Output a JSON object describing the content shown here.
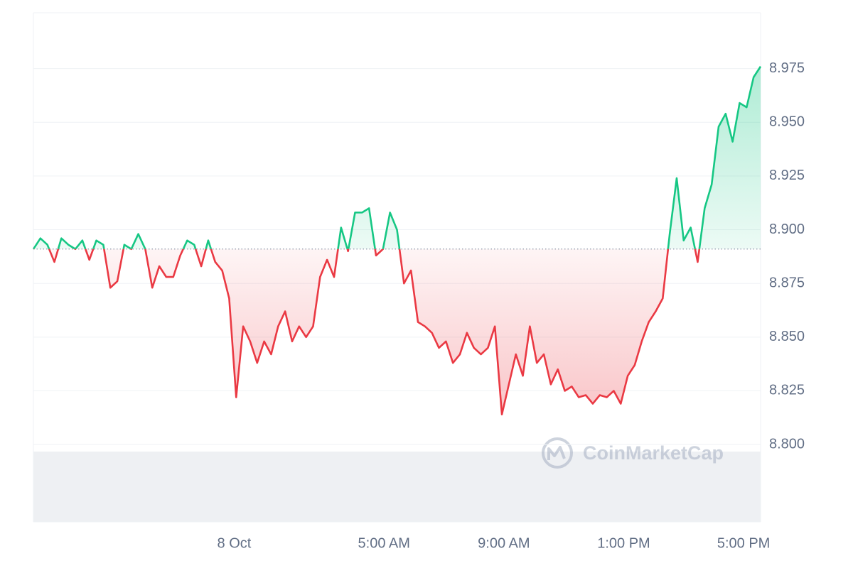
{
  "chart_data": {
    "type": "line",
    "x": [
      -402,
      -388,
      -374,
      -360,
      -346,
      -332,
      -318,
      -304,
      -290,
      -276,
      -262,
      -248,
      -234,
      -220,
      -206,
      -192,
      -178,
      -164,
      -150,
      -136,
      -122,
      -108,
      -94,
      -80,
      -66,
      -52,
      -38,
      -24,
      -10,
      4,
      18,
      32,
      46,
      60,
      74,
      88,
      102,
      116,
      130,
      144,
      158,
      172,
      186,
      200,
      214,
      228,
      242,
      256,
      270,
      284,
      298,
      312,
      326,
      340,
      354,
      368,
      382,
      396,
      410,
      424,
      438,
      452,
      466,
      480,
      494,
      508,
      522,
      536,
      550,
      564,
      578,
      592,
      606,
      620,
      634,
      648,
      662,
      676,
      690,
      704,
      718,
      732,
      746,
      760,
      774,
      788,
      802,
      816,
      830,
      844,
      858,
      872,
      886,
      900,
      914,
      928,
      942,
      956,
      970,
      984,
      998,
      1012,
      1026,
      1040,
      1054
    ],
    "values": [
      8.891,
      8.896,
      8.893,
      8.885,
      8.896,
      8.893,
      8.891,
      8.895,
      8.886,
      8.895,
      8.893,
      8.873,
      8.876,
      8.893,
      8.891,
      8.898,
      8.891,
      8.873,
      8.883,
      8.878,
      8.878,
      8.888,
      8.895,
      8.893,
      8.883,
      8.895,
      8.885,
      8.881,
      8.868,
      8.822,
      8.855,
      8.848,
      8.838,
      8.848,
      8.842,
      8.855,
      8.862,
      8.848,
      8.855,
      8.85,
      8.855,
      8.878,
      8.886,
      8.878,
      8.901,
      8.89,
      8.908,
      8.908,
      8.91,
      8.888,
      8.891,
      8.908,
      8.9,
      8.875,
      8.881,
      8.857,
      8.855,
      8.852,
      8.845,
      8.848,
      8.838,
      8.842,
      8.852,
      8.845,
      8.842,
      8.845,
      8.855,
      8.814,
      8.828,
      8.842,
      8.832,
      8.855,
      8.838,
      8.842,
      8.828,
      8.835,
      8.825,
      8.827,
      8.822,
      8.823,
      8.819,
      8.823,
      8.822,
      8.825,
      8.819,
      8.832,
      8.837,
      8.848,
      8.857,
      8.862,
      8.868,
      8.898,
      8.924,
      8.895,
      8.901,
      8.885,
      8.91,
      8.921,
      8.948,
      8.954,
      8.941,
      8.959,
      8.957,
      8.971,
      8.976
    ],
    "baseline": 8.891,
    "up_color": "#16c784",
    "down_color": "#ea3943",
    "xlim": [
      -402,
      1054
    ],
    "xticks": [
      {
        "value": 0,
        "label": "8 Oct"
      },
      {
        "value": 300,
        "label": "5:00 AM"
      },
      {
        "value": 540,
        "label": "9:00 AM"
      },
      {
        "value": 780,
        "label": "1:00 PM"
      },
      {
        "value": 1020,
        "label": "5:00 PM"
      }
    ],
    "ylim": [
      8.764,
      9.001
    ],
    "yticks": [
      {
        "value": 8.8,
        "label": "8.800"
      },
      8.825,
      {
        "value": 8.85,
        "label": "8.850"
      },
      8.875,
      {
        "value": 8.9,
        "label": "8.900"
      },
      8.925,
      {
        "value": 8.95,
        "label": "8.950"
      },
      8.975
    ],
    "grid": true,
    "watermark": "CoinMarketCap"
  }
}
